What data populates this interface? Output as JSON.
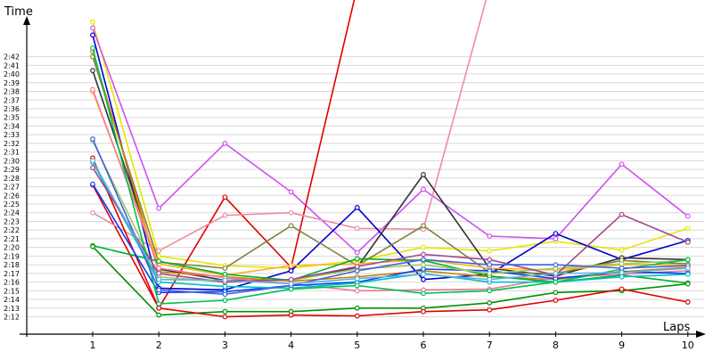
{
  "chart_data": {
    "type": "line",
    "xlabel": "Laps",
    "ylabel": "Time",
    "x": [
      1,
      2,
      3,
      4,
      5,
      6,
      7,
      8,
      9,
      10
    ],
    "xlim": [
      0.05,
      10.2
    ],
    "ylim": [
      130.5,
      164.5
    ],
    "y_unit": "seconds (tick labels shown as m:ss)",
    "y_ticks": [
      {
        "value": 132,
        "label": "2:12"
      },
      {
        "value": 133,
        "label": "2:13"
      },
      {
        "value": 134,
        "label": "2:14"
      },
      {
        "value": 135,
        "label": "2:15"
      },
      {
        "value": 136,
        "label": "2:16"
      },
      {
        "value": 137,
        "label": "2:17"
      },
      {
        "value": 138,
        "label": "2:18"
      },
      {
        "value": 139,
        "label": "2:19"
      },
      {
        "value": 140,
        "label": "2:20"
      },
      {
        "value": 141,
        "label": "2:21"
      },
      {
        "value": 142,
        "label": "2:22"
      },
      {
        "value": 143,
        "label": "2:23"
      },
      {
        "value": 144,
        "label": "2:24"
      },
      {
        "value": 145,
        "label": "2:25"
      },
      {
        "value": 146,
        "label": "2:26"
      },
      {
        "value": 147,
        "label": "2:27"
      },
      {
        "value": 148,
        "label": "2:28"
      },
      {
        "value": 149,
        "label": "2:29"
      },
      {
        "value": 150,
        "label": "2:30"
      },
      {
        "value": 151,
        "label": "2:31"
      },
      {
        "value": 152,
        "label": "2:32"
      },
      {
        "value": 153,
        "label": "2:33"
      },
      {
        "value": 154,
        "label": "2:34"
      },
      {
        "value": 155,
        "label": "2:35"
      },
      {
        "value": 156,
        "label": "2:36"
      },
      {
        "value": 157,
        "label": "2:37"
      },
      {
        "value": 158,
        "label": "2:38"
      },
      {
        "value": 159,
        "label": "2:39"
      },
      {
        "value": 160,
        "label": "2:40"
      },
      {
        "value": 161,
        "label": "2:41"
      },
      {
        "value": 162,
        "label": "2:42"
      }
    ],
    "x_ticks": [
      "1",
      "2",
      "3",
      "4",
      "5",
      "6",
      "7",
      "8",
      "9",
      "10"
    ],
    "grid": "horizontal",
    "legend": "none",
    "series": [
      {
        "color": "#e6e600",
        "values": [
          166.0,
          139.0,
          137.9,
          137.6,
          138.5,
          140.0,
          139.6,
          140.7,
          139.7,
          142.2
        ]
      },
      {
        "color": "#d050f0",
        "values": [
          165.3,
          144.5,
          152.0,
          146.4,
          139.4,
          146.7,
          141.3,
          141.0,
          149.6,
          143.6
        ]
      },
      {
        "color": "#e00000",
        "values": [
          147.2,
          133.0,
          145.8,
          137.7,
          170.0,
          null,
          null,
          null,
          null,
          null
        ]
      },
      {
        "color": "#f08ca0",
        "values": [
          144.0,
          139.6,
          143.7,
          144.0,
          142.2,
          142.1,
          170.0,
          null,
          null,
          null
        ]
      },
      {
        "color": "#0000cc",
        "values": [
          164.5,
          135.3,
          135.1,
          137.3,
          144.6,
          136.3,
          136.9,
          141.6,
          138.6,
          140.8
        ]
      },
      {
        "color": "#333333",
        "values": [
          160.4,
          137.5,
          136.2,
          136.2,
          137.7,
          148.4,
          137.6,
          136.7,
          138.8,
          138.6
        ]
      },
      {
        "color": "#7f8040",
        "values": [
          162.0,
          138.3,
          137.6,
          142.5,
          137.9,
          142.5,
          137.1,
          137.0,
          138.5,
          138.1
        ]
      },
      {
        "color": "#d08000",
        "values": [
          162.6,
          137.2,
          136.6,
          136.1,
          136.6,
          137.3,
          136.6,
          136.3,
          137.2,
          137.7
        ]
      },
      {
        "color": "#ffb020",
        "values": [
          158.0,
          138.1,
          136.8,
          137.9,
          138.1,
          138.6,
          137.6,
          137.4,
          138.0,
          138.0
        ]
      },
      {
        "color": "#f07898",
        "values": [
          158.2,
          137.6,
          136.5,
          135.8,
          135.0,
          135.1,
          135.2,
          136.5,
          136.9,
          137.3
        ]
      },
      {
        "color": "#00b030",
        "values": [
          140.2,
          138.4,
          136.9,
          136.2,
          138.7,
          138.5,
          136.7,
          136.0,
          136.8,
          135.9
        ]
      },
      {
        "color": "#009000",
        "values": [
          140.1,
          132.2,
          132.6,
          132.6,
          133.0,
          133.0,
          133.6,
          134.8,
          135.0,
          135.8
        ]
      },
      {
        "color": "#e00000",
        "values": [
          150.3,
          133.0,
          132.0,
          132.2,
          132.1,
          132.6,
          132.8,
          133.9,
          135.2,
          133.7
        ]
      },
      {
        "color": "#0040ff",
        "values": [
          147.3,
          134.8,
          134.9,
          135.6,
          136.0,
          137.5,
          137.3,
          136.4,
          137.2,
          137.0
        ]
      },
      {
        "color": "#00c0c0",
        "values": [
          149.8,
          136.0,
          135.5,
          135.3,
          135.9,
          137.0,
          136.0,
          136.0,
          136.6,
          136.9
        ]
      },
      {
        "color": "#a0c860",
        "values": [
          152.3,
          136.6,
          136.0,
          136.2,
          137.5,
          138.0,
          137.0,
          137.6,
          138.1,
          138.5
        ]
      },
      {
        "color": "#a04890",
        "values": [
          149.2,
          137.0,
          136.0,
          136.3,
          137.8,
          139.2,
          138.6,
          136.8,
          143.8,
          140.6
        ]
      },
      {
        "color": "#00c050",
        "values": [
          163.0,
          133.5,
          133.9,
          135.2,
          135.6,
          134.7,
          135.0,
          136.0,
          137.5,
          138.6
        ]
      },
      {
        "color": "#4060e0",
        "values": [
          152.5,
          135.1,
          134.6,
          135.6,
          137.3,
          138.6,
          138.0,
          138.0,
          137.6,
          137.9
        ]
      },
      {
        "color": "#60b0e0",
        "values": [
          150.0,
          136.3,
          136.2,
          135.8,
          136.4,
          136.9,
          136.3,
          137.0,
          137.1,
          137.6
        ]
      }
    ]
  }
}
